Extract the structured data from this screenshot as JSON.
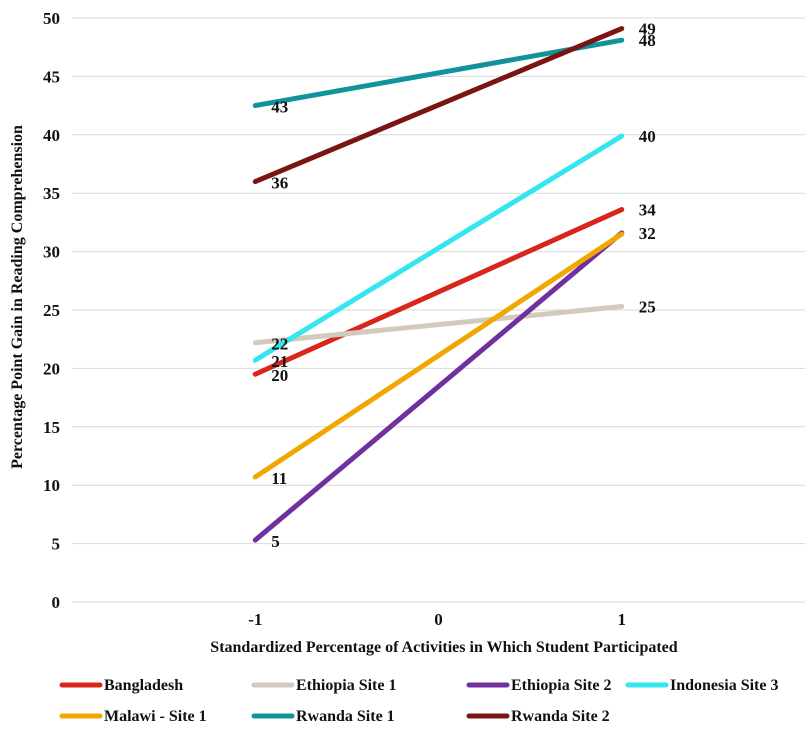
{
  "chart_data": {
    "type": "line",
    "title": "",
    "xlabel": "Standardized Percentage of Activities in Which Student Participated",
    "ylabel": "Percentage Point Gain in Reading Comprehension",
    "x_ticks": [
      "-1",
      "0",
      "1"
    ],
    "xlim": [
      -2,
      2
    ],
    "ylim": [
      0,
      50
    ],
    "y_ticks": [
      0,
      5,
      10,
      15,
      20,
      25,
      30,
      35,
      40,
      45,
      50
    ],
    "grid": true,
    "legend_position": "bottom",
    "x": [
      -1,
      1
    ],
    "series": [
      {
        "name": "Bangladesh",
        "values": [
          19.5,
          33.6
        ],
        "labels": [
          "20",
          "34"
        ],
        "color": "#d9261c"
      },
      {
        "name": "Ethiopia Site 1",
        "values": [
          22.2,
          25.3
        ],
        "labels": [
          "22",
          "25"
        ],
        "color": "#d2cbbd"
      },
      {
        "name": "Ethiopia Site 2",
        "values": [
          5.3,
          31.6
        ],
        "labels": [
          "5",
          "32"
        ],
        "color": "#7030a0"
      },
      {
        "name": "Indonesia Site 3",
        "values": [
          20.7,
          39.9
        ],
        "labels": [
          "21",
          "40"
        ],
        "color": "#33e6f0"
      },
      {
        "name": "Malawi - Site 1",
        "values": [
          10.7,
          31.5
        ],
        "labels": [
          "11",
          ""
        ],
        "color": "#f0a800"
      },
      {
        "name": "Rwanda Site 1",
        "values": [
          42.5,
          48.1
        ],
        "labels": [
          "43",
          "48"
        ],
        "color": "#11939c"
      },
      {
        "name": "Rwanda Site 2",
        "values": [
          36.0,
          49.1
        ],
        "labels": [
          "36",
          "49"
        ],
        "color": "#7b1513"
      }
    ]
  }
}
